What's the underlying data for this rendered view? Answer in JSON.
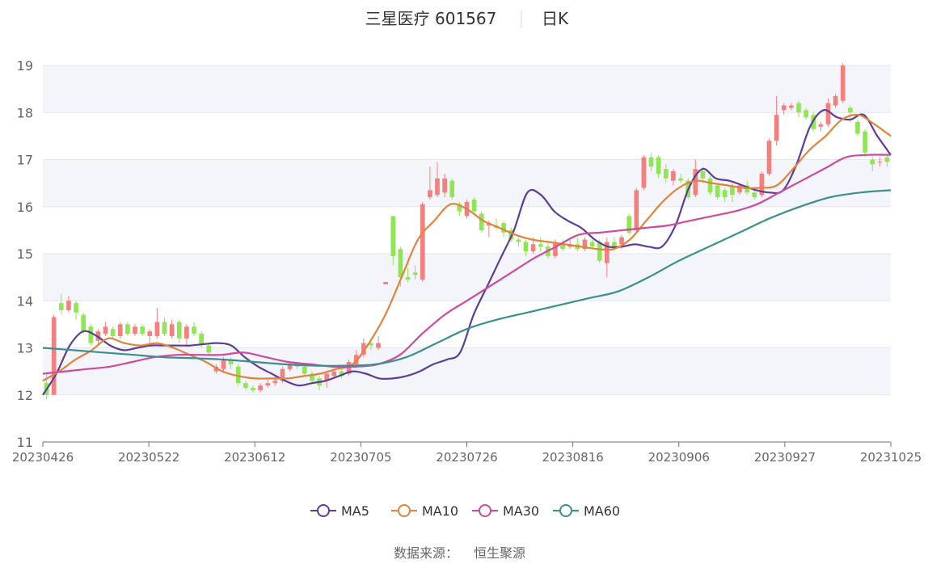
{
  "header": {
    "title": "三星医疗 601567",
    "period": "日K"
  },
  "source": {
    "label": "数据来源：",
    "value": "恒生聚源"
  },
  "legend": [
    {
      "name": "MA5",
      "color": "#5b3e99"
    },
    {
      "name": "MA10",
      "color": "#e3823a"
    },
    {
      "name": "MA30",
      "color": "#cf4a9d"
    },
    {
      "name": "MA60",
      "color": "#3b8f8f"
    }
  ],
  "chart_data": {
    "type": "candlestick",
    "title": "三星医疗 601567",
    "subtitle": "日K",
    "ylim": [
      11,
      19
    ],
    "yticks": [
      11,
      12,
      13,
      14,
      15,
      16,
      17,
      18,
      19
    ],
    "xticks": [
      "20230426",
      "20230522",
      "20230612",
      "20230705",
      "20230726",
      "20230816",
      "20230906",
      "20230927",
      "20231025"
    ],
    "up_color": "#f47f7f",
    "down_color": "#8ee653",
    "grid": true,
    "legend_position": "bottom-center",
    "candles": [
      [
        12.25,
        12.0,
        12.45,
        11.9
      ],
      [
        12.0,
        13.65,
        13.7,
        12.8
      ],
      [
        13.95,
        13.8,
        14.15,
        13.7
      ],
      [
        13.8,
        14.0,
        14.1,
        13.75
      ],
      [
        13.95,
        13.75,
        14.0,
        13.6
      ],
      [
        13.7,
        13.35,
        13.75,
        13.3
      ],
      [
        13.45,
        13.1,
        13.5,
        13.05
      ],
      [
        13.15,
        13.35,
        13.4,
        13.05
      ],
      [
        13.3,
        13.45,
        13.55,
        13.25
      ],
      [
        13.4,
        13.25,
        13.45,
        13.2
      ],
      [
        13.25,
        13.5,
        13.55,
        13.2
      ],
      [
        13.5,
        13.3,
        13.55,
        13.25
      ],
      [
        13.3,
        13.45,
        13.5,
        13.25
      ],
      [
        13.45,
        13.3,
        13.5,
        13.25
      ],
      [
        13.25,
        13.35,
        13.4,
        13.1
      ],
      [
        13.25,
        13.55,
        13.85,
        13.2
      ],
      [
        13.55,
        13.3,
        13.65,
        13.25
      ],
      [
        13.25,
        13.5,
        13.6,
        13.2
      ],
      [
        13.55,
        13.2,
        13.6,
        13.1
      ],
      [
        13.2,
        13.45,
        13.5,
        13.05
      ],
      [
        13.45,
        13.3,
        13.55,
        13.25
      ],
      [
        13.3,
        13.05,
        13.35,
        13.0
      ],
      [
        13.05,
        12.9,
        13.1,
        12.85
      ],
      [
        12.5,
        12.6,
        12.65,
        12.45
      ],
      [
        12.55,
        12.75,
        12.8,
        12.5
      ],
      [
        12.75,
        12.65,
        12.8,
        12.55
      ],
      [
        12.6,
        12.25,
        12.65,
        12.2
      ],
      [
        12.25,
        12.15,
        12.3,
        12.1
      ],
      [
        12.15,
        12.1,
        12.2,
        12.05
      ],
      [
        12.1,
        12.2,
        12.25,
        12.05
      ],
      [
        12.2,
        12.25,
        12.35,
        12.15
      ],
      [
        12.25,
        12.3,
        12.4,
        12.2
      ],
      [
        12.3,
        12.55,
        12.6,
        12.25
      ],
      [
        12.55,
        12.65,
        12.7,
        12.5
      ],
      [
        12.65,
        12.6,
        12.7,
        12.55
      ],
      [
        12.6,
        12.45,
        12.65,
        12.4
      ],
      [
        12.45,
        12.3,
        12.5,
        12.25
      ],
      [
        12.35,
        12.2,
        12.4,
        12.1
      ],
      [
        12.3,
        12.45,
        12.5,
        12.15
      ],
      [
        12.4,
        12.5,
        12.55,
        12.35
      ],
      [
        12.5,
        12.4,
        12.55,
        12.35
      ],
      [
        12.45,
        12.7,
        12.75,
        12.4
      ],
      [
        12.65,
        12.85,
        12.95,
        12.6
      ],
      [
        12.85,
        13.1,
        13.2,
        12.8
      ],
      [
        13.1,
        13.05,
        13.2,
        12.95
      ],
      [
        13.0,
        13.1,
        13.25,
        12.95
      ],
      [
        14.35,
        14.4,
        14.4,
        14.35
      ],
      [
        15.8,
        14.95,
        15.8,
        14.75
      ],
      [
        15.1,
        14.5,
        15.15,
        14.3
      ],
      [
        14.5,
        14.45,
        14.7,
        14.4
      ],
      [
        14.6,
        14.55,
        14.75,
        14.45
      ],
      [
        14.45,
        16.05,
        16.1,
        14.4
      ],
      [
        16.2,
        16.35,
        16.85,
        16.15
      ],
      [
        16.25,
        16.6,
        16.95,
        16.2
      ],
      [
        16.3,
        16.6,
        16.7,
        16.2
      ],
      [
        16.55,
        16.2,
        16.6,
        16.15
      ],
      [
        16.05,
        15.9,
        16.1,
        15.8
      ],
      [
        15.8,
        16.1,
        16.15,
        15.75
      ],
      [
        16.15,
        15.9,
        16.2,
        15.85
      ],
      [
        15.85,
        15.5,
        15.9,
        15.45
      ],
      [
        15.6,
        15.65,
        15.7,
        15.35
      ],
      [
        15.6,
        15.55,
        15.75,
        15.5
      ],
      [
        15.65,
        15.45,
        15.7,
        15.35
      ],
      [
        15.5,
        15.3,
        15.55,
        15.25
      ],
      [
        15.3,
        15.25,
        15.35,
        15.15
      ],
      [
        15.25,
        15.05,
        15.3,
        14.95
      ],
      [
        15.05,
        15.2,
        15.35,
        15.0
      ],
      [
        15.2,
        15.15,
        15.35,
        15.05
      ],
      [
        15.15,
        14.95,
        15.25,
        14.9
      ],
      [
        14.95,
        15.25,
        15.3,
        14.9
      ],
      [
        15.2,
        15.1,
        15.3,
        15.05
      ],
      [
        15.15,
        15.2,
        15.3,
        15.1
      ],
      [
        15.2,
        15.1,
        15.35,
        15.05
      ],
      [
        15.1,
        15.3,
        15.35,
        15.05
      ],
      [
        15.25,
        15.15,
        15.3,
        15.1
      ],
      [
        15.25,
        14.85,
        15.3,
        14.8
      ],
      [
        14.8,
        15.25,
        15.35,
        14.5
      ],
      [
        15.25,
        15.1,
        15.35,
        15.05
      ],
      [
        15.2,
        15.35,
        15.4,
        15.1
      ],
      [
        15.8,
        15.45,
        15.85,
        15.4
      ],
      [
        15.5,
        16.35,
        16.4,
        15.45
      ],
      [
        16.4,
        17.05,
        17.1,
        16.35
      ],
      [
        17.05,
        16.85,
        17.15,
        16.75
      ],
      [
        17.05,
        16.7,
        17.1,
        16.6
      ],
      [
        16.8,
        16.6,
        16.9,
        16.5
      ],
      [
        16.55,
        16.75,
        16.8,
        16.45
      ],
      [
        16.6,
        16.55,
        16.7,
        16.5
      ],
      [
        16.55,
        16.2,
        16.6,
        16.15
      ],
      [
        16.25,
        16.8,
        17.0,
        16.2
      ],
      [
        16.75,
        16.6,
        16.85,
        16.5
      ],
      [
        16.6,
        16.3,
        16.65,
        16.25
      ],
      [
        16.45,
        16.2,
        16.5,
        16.15
      ],
      [
        16.35,
        16.2,
        16.4,
        16.1
      ],
      [
        16.45,
        16.25,
        16.5,
        16.1
      ],
      [
        16.3,
        16.45,
        16.5,
        16.25
      ],
      [
        16.45,
        16.3,
        16.55,
        16.25
      ],
      [
        16.3,
        16.2,
        16.35,
        16.15
      ],
      [
        16.25,
        16.7,
        16.75,
        16.2
      ],
      [
        16.7,
        17.4,
        17.45,
        16.65
      ],
      [
        17.4,
        17.95,
        18.35,
        17.3
      ],
      [
        18.05,
        18.15,
        18.2,
        17.95
      ],
      [
        18.1,
        18.15,
        18.2,
        18.05
      ],
      [
        18.2,
        18.0,
        18.25,
        17.9
      ],
      [
        18.05,
        17.9,
        18.1,
        17.85
      ],
      [
        17.95,
        17.65,
        18.0,
        17.6
      ],
      [
        17.7,
        17.75,
        17.8,
        17.6
      ],
      [
        17.75,
        18.2,
        18.3,
        17.7
      ],
      [
        18.15,
        18.35,
        18.4,
        18.1
      ],
      [
        18.25,
        19.0,
        19.05,
        18.2
      ],
      [
        18.1,
        18.0,
        18.15,
        17.8
      ],
      [
        17.8,
        17.55,
        17.85,
        17.5
      ],
      [
        17.6,
        17.15,
        17.65,
        17.05
      ],
      [
        17.0,
        16.9,
        17.05,
        16.75
      ],
      [
        16.95,
        16.95,
        17.05,
        16.85
      ],
      [
        17.05,
        16.95,
        17.1,
        16.85
      ]
    ],
    "series": [
      {
        "name": "MA5",
        "values": [
          12.0,
          12.45,
          13.05,
          13.35,
          13.25,
          13.05,
          12.95,
          13.0,
          13.05,
          13.05,
          13.05,
          13.05,
          13.08,
          13.1,
          13.05,
          12.8,
          12.6,
          12.45,
          12.3,
          12.2,
          12.25,
          12.3,
          12.4,
          12.5,
          12.45,
          12.35,
          12.35,
          12.4,
          12.5,
          12.65,
          12.75,
          12.9,
          13.7,
          14.3,
          14.9,
          15.5,
          16.3,
          16.25,
          15.9,
          15.7,
          15.55,
          15.3,
          15.15,
          15.15,
          15.2,
          15.15,
          15.15,
          15.6,
          16.4,
          16.8,
          16.6,
          16.55,
          16.45,
          16.35,
          16.3,
          16.35,
          16.9,
          17.7,
          18.05,
          17.9,
          17.85,
          17.95,
          17.5,
          17.1
        ]
      },
      {
        "name": "MA10",
        "values": [
          12.3,
          12.5,
          12.75,
          12.95,
          13.2,
          13.1,
          13.05,
          13.1,
          13.0,
          12.85,
          12.7,
          12.5,
          12.4,
          12.35,
          12.35,
          12.35,
          12.4,
          12.45,
          12.55,
          12.65,
          13.1,
          13.7,
          14.5,
          15.3,
          15.7,
          16.05,
          15.95,
          15.7,
          15.55,
          15.4,
          15.3,
          15.25,
          15.2,
          15.15,
          15.1,
          15.1,
          15.3,
          15.7,
          16.1,
          16.4,
          16.55,
          16.5,
          16.45,
          16.4,
          16.4,
          16.45,
          16.8,
          17.2,
          17.5,
          17.85,
          17.95,
          17.75,
          17.5
        ]
      },
      {
        "name": "MA30",
        "values": [
          12.45,
          12.5,
          12.55,
          12.6,
          12.7,
          12.8,
          12.85,
          12.85,
          12.85,
          12.9,
          12.8,
          12.7,
          12.65,
          12.6,
          12.6,
          12.65,
          12.85,
          13.3,
          13.7,
          14.0,
          14.3,
          14.6,
          14.9,
          15.15,
          15.4,
          15.45,
          15.5,
          15.55,
          15.6,
          15.7,
          15.8,
          15.9,
          16.05,
          16.3,
          16.55,
          16.8,
          17.05,
          17.1,
          17.1
        ]
      },
      {
        "name": "MA60",
        "values": [
          13.0,
          12.95,
          12.9,
          12.85,
          12.8,
          12.78,
          12.75,
          12.7,
          12.65,
          12.62,
          12.62,
          12.65,
          12.8,
          13.1,
          13.4,
          13.6,
          13.75,
          13.9,
          14.05,
          14.2,
          14.5,
          14.85,
          15.15,
          15.45,
          15.75,
          16.0,
          16.2,
          16.3,
          16.35
        ]
      }
    ]
  }
}
